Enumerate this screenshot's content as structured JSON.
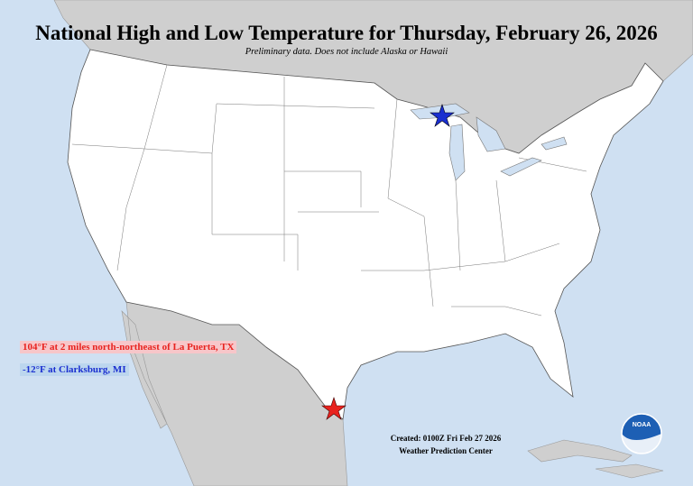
{
  "title": "National High and Low Temperature for Thursday, February 26, 2026",
  "subtitle": "Preliminary data. Does not include Alaska or Hawaii",
  "high": {
    "label": "104°F at 2 miles north-northeast of La Puerta, TX"
  },
  "low": {
    "label": "-12°F at Clarksburg, MI"
  },
  "footer": {
    "created": "Created: 0100Z Fri Feb 27 2026",
    "center": "Weather Prediction Center"
  },
  "logo": {
    "label": "NOAA"
  }
}
